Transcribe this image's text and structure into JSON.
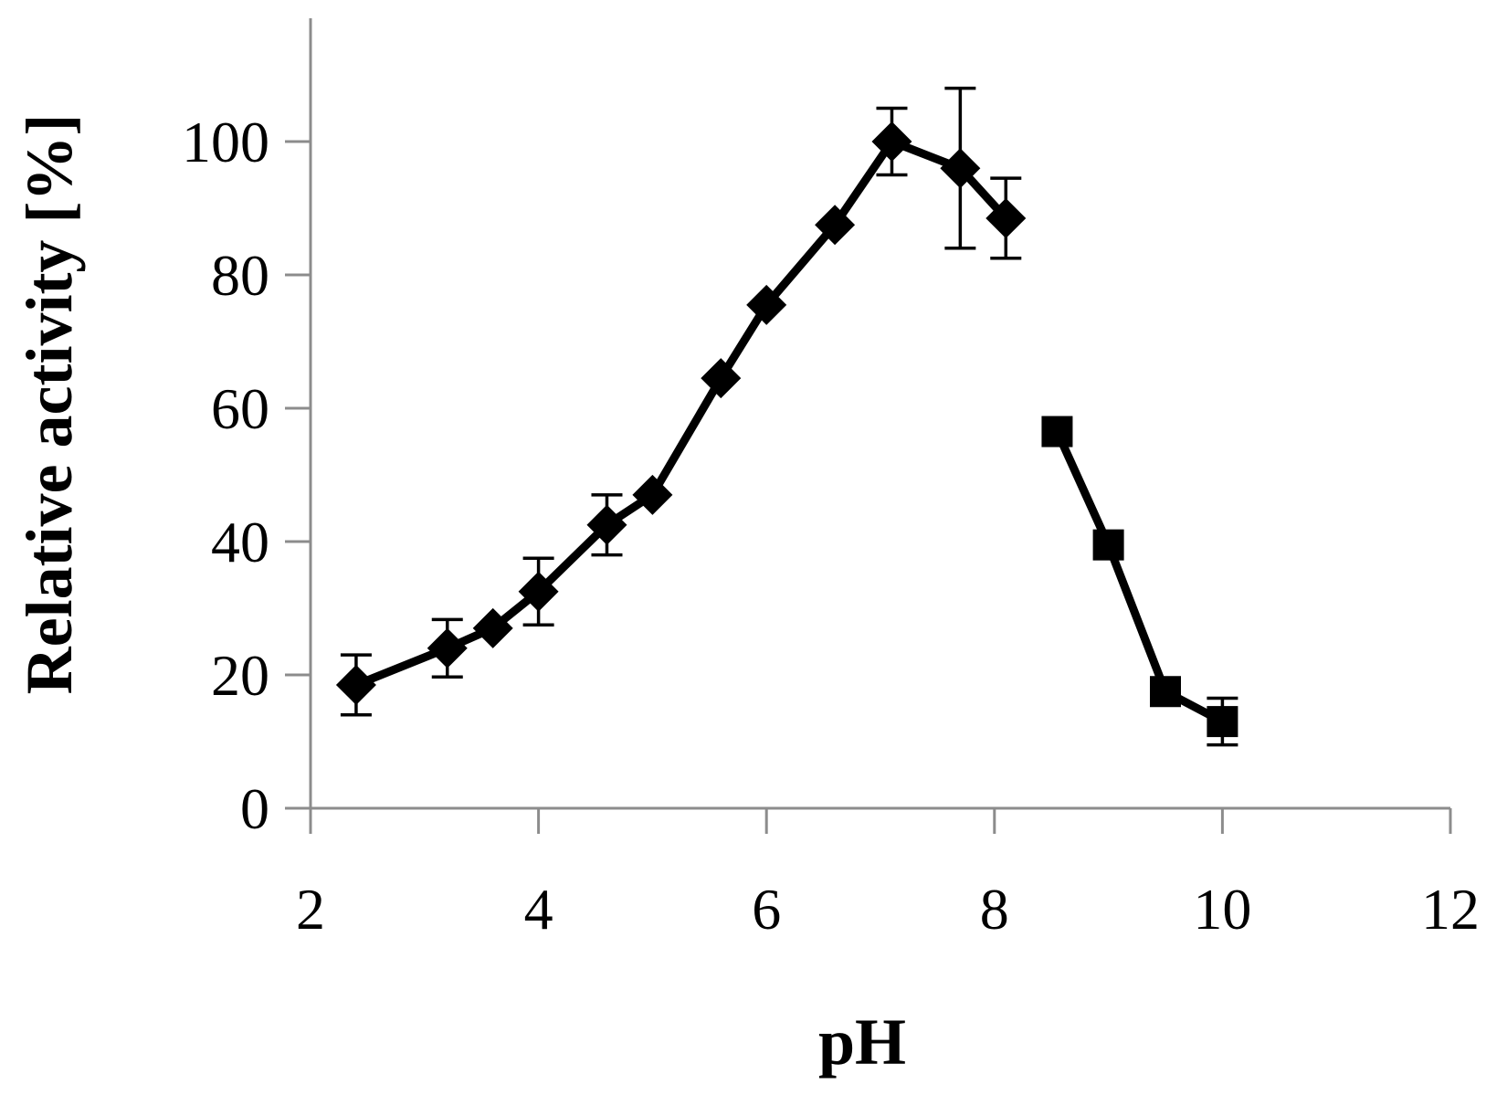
{
  "chart_data": {
    "type": "line",
    "title": "",
    "xlabel": "pH",
    "ylabel": "Relative activity [%]",
    "xlim": [
      2,
      12
    ],
    "ylim": [
      0,
      110
    ],
    "x_ticks": [
      "2",
      "4",
      "6",
      "8",
      "10",
      "12"
    ],
    "y_ticks": [
      "0",
      "20",
      "40",
      "60",
      "80",
      "100"
    ],
    "grid": false,
    "legend": "none",
    "series": [
      {
        "marker": "diamond",
        "color": "#000000",
        "points": [
          {
            "x": 2.4,
            "y": 18.5,
            "err": 4.5
          },
          {
            "x": 3.2,
            "y": 24.0,
            "err": 4.3
          },
          {
            "x": 3.6,
            "y": 27.0,
            "err": 0
          },
          {
            "x": 4.0,
            "y": 32.5,
            "err": 5.0
          },
          {
            "x": 4.6,
            "y": 42.5,
            "err": 4.5
          },
          {
            "x": 5.0,
            "y": 47.0,
            "err": 0
          },
          {
            "x": 5.6,
            "y": 64.5,
            "err": 0
          },
          {
            "x": 6.0,
            "y": 75.5,
            "err": 0
          },
          {
            "x": 6.6,
            "y": 87.5,
            "err": 0
          },
          {
            "x": 7.1,
            "y": 100.0,
            "err": 5.0
          },
          {
            "x": 7.7,
            "y": 96.0,
            "err": 12.0
          },
          {
            "x": 8.1,
            "y": 88.5,
            "err": 6.0
          }
        ]
      },
      {
        "marker": "square",
        "color": "#000000",
        "points": [
          {
            "x": 8.55,
            "y": 56.5,
            "err": 0
          },
          {
            "x": 9.0,
            "y": 39.5,
            "err": 0
          },
          {
            "x": 9.5,
            "y": 17.5,
            "err": 0
          },
          {
            "x": 10.0,
            "y": 13.0,
            "err": 3.5
          }
        ]
      }
    ]
  }
}
